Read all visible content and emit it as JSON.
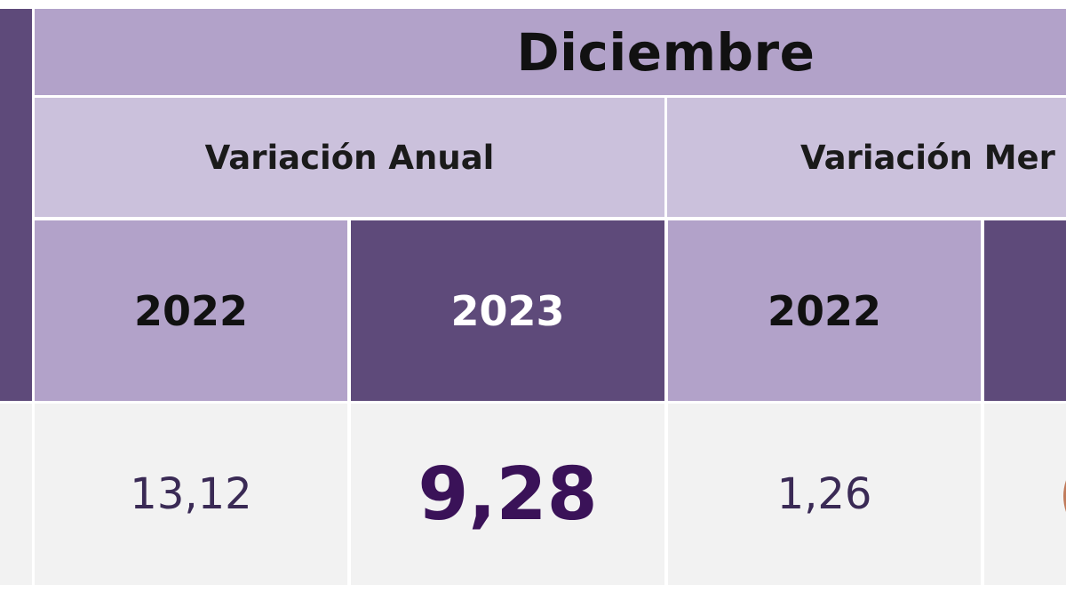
{
  "table": {
    "month": "Diciembre",
    "groups": [
      "Variación Anual",
      "Variación Mer"
    ],
    "years": [
      "2022",
      "2023",
      "2022",
      ""
    ],
    "values": [
      "13,12",
      "9,28",
      "1,26",
      "("
    ]
  },
  "colors": {
    "header_purple": "#b2a2c9",
    "subheader_lavender": "#cbc1dc",
    "dark_purple": "#5e4a7a",
    "cell_gray": "#f2f2f2",
    "highlight_text": "#3a1258"
  }
}
